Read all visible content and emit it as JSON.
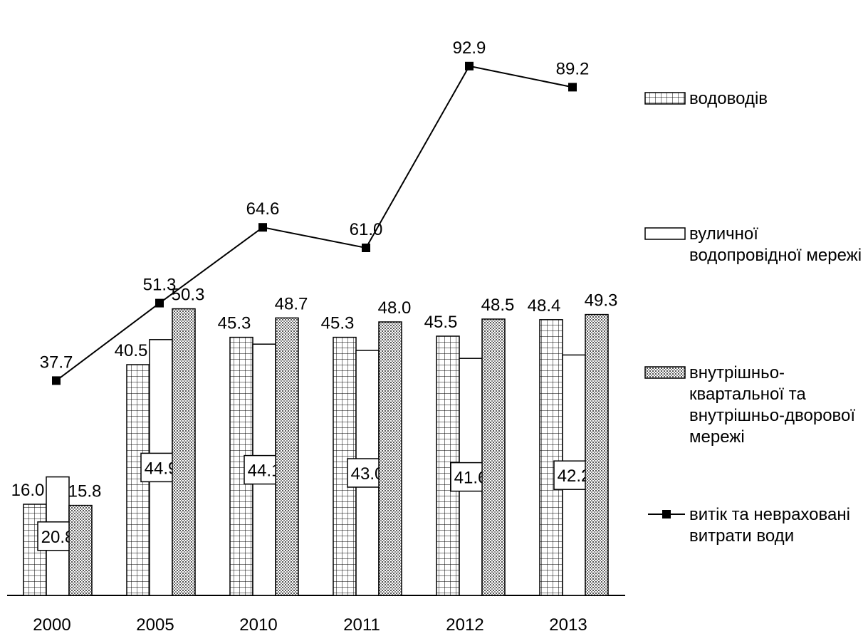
{
  "chart_data": {
    "type": "bar",
    "categories": [
      "2000",
      "2005",
      "2010",
      "2011",
      "2012",
      "2013"
    ],
    "ylim": [
      0,
      100
    ],
    "series": [
      {
        "name": "водоводів",
        "pattern": "grid",
        "values": [
          16.0,
          40.5,
          45.3,
          45.3,
          45.5,
          48.4
        ],
        "value_labels": [
          "16.0",
          "40.5",
          "45.3",
          "45.3",
          "45.5",
          "48.4"
        ]
      },
      {
        "name": "вуличної водопровідної мережі",
        "pattern": "none",
        "values": [
          20.8,
          44.9,
          44.1,
          43.0,
          41.6,
          42.2
        ],
        "value_labels": [
          "20.8",
          "44.9",
          "44.1",
          "43.0",
          "41.6",
          "42.2"
        ]
      },
      {
        "name": "внутрішньо-квартальної та внутрішньо-дворової мережі",
        "pattern": "dots",
        "values": [
          15.8,
          50.3,
          48.7,
          48.0,
          48.5,
          49.3
        ],
        "value_labels": [
          "15.8",
          "50.3",
          "48.7",
          "48.0",
          "48.5",
          "49.3"
        ]
      },
      {
        "name": "витік та невраховані витрати води",
        "type": "line",
        "color": "#000000",
        "values": [
          37.7,
          51.3,
          64.6,
          61.0,
          92.9,
          89.2
        ],
        "value_labels": [
          "37.7",
          "51.3",
          "64.6",
          "61.0",
          "92.9",
          "89.2"
        ]
      }
    ]
  }
}
